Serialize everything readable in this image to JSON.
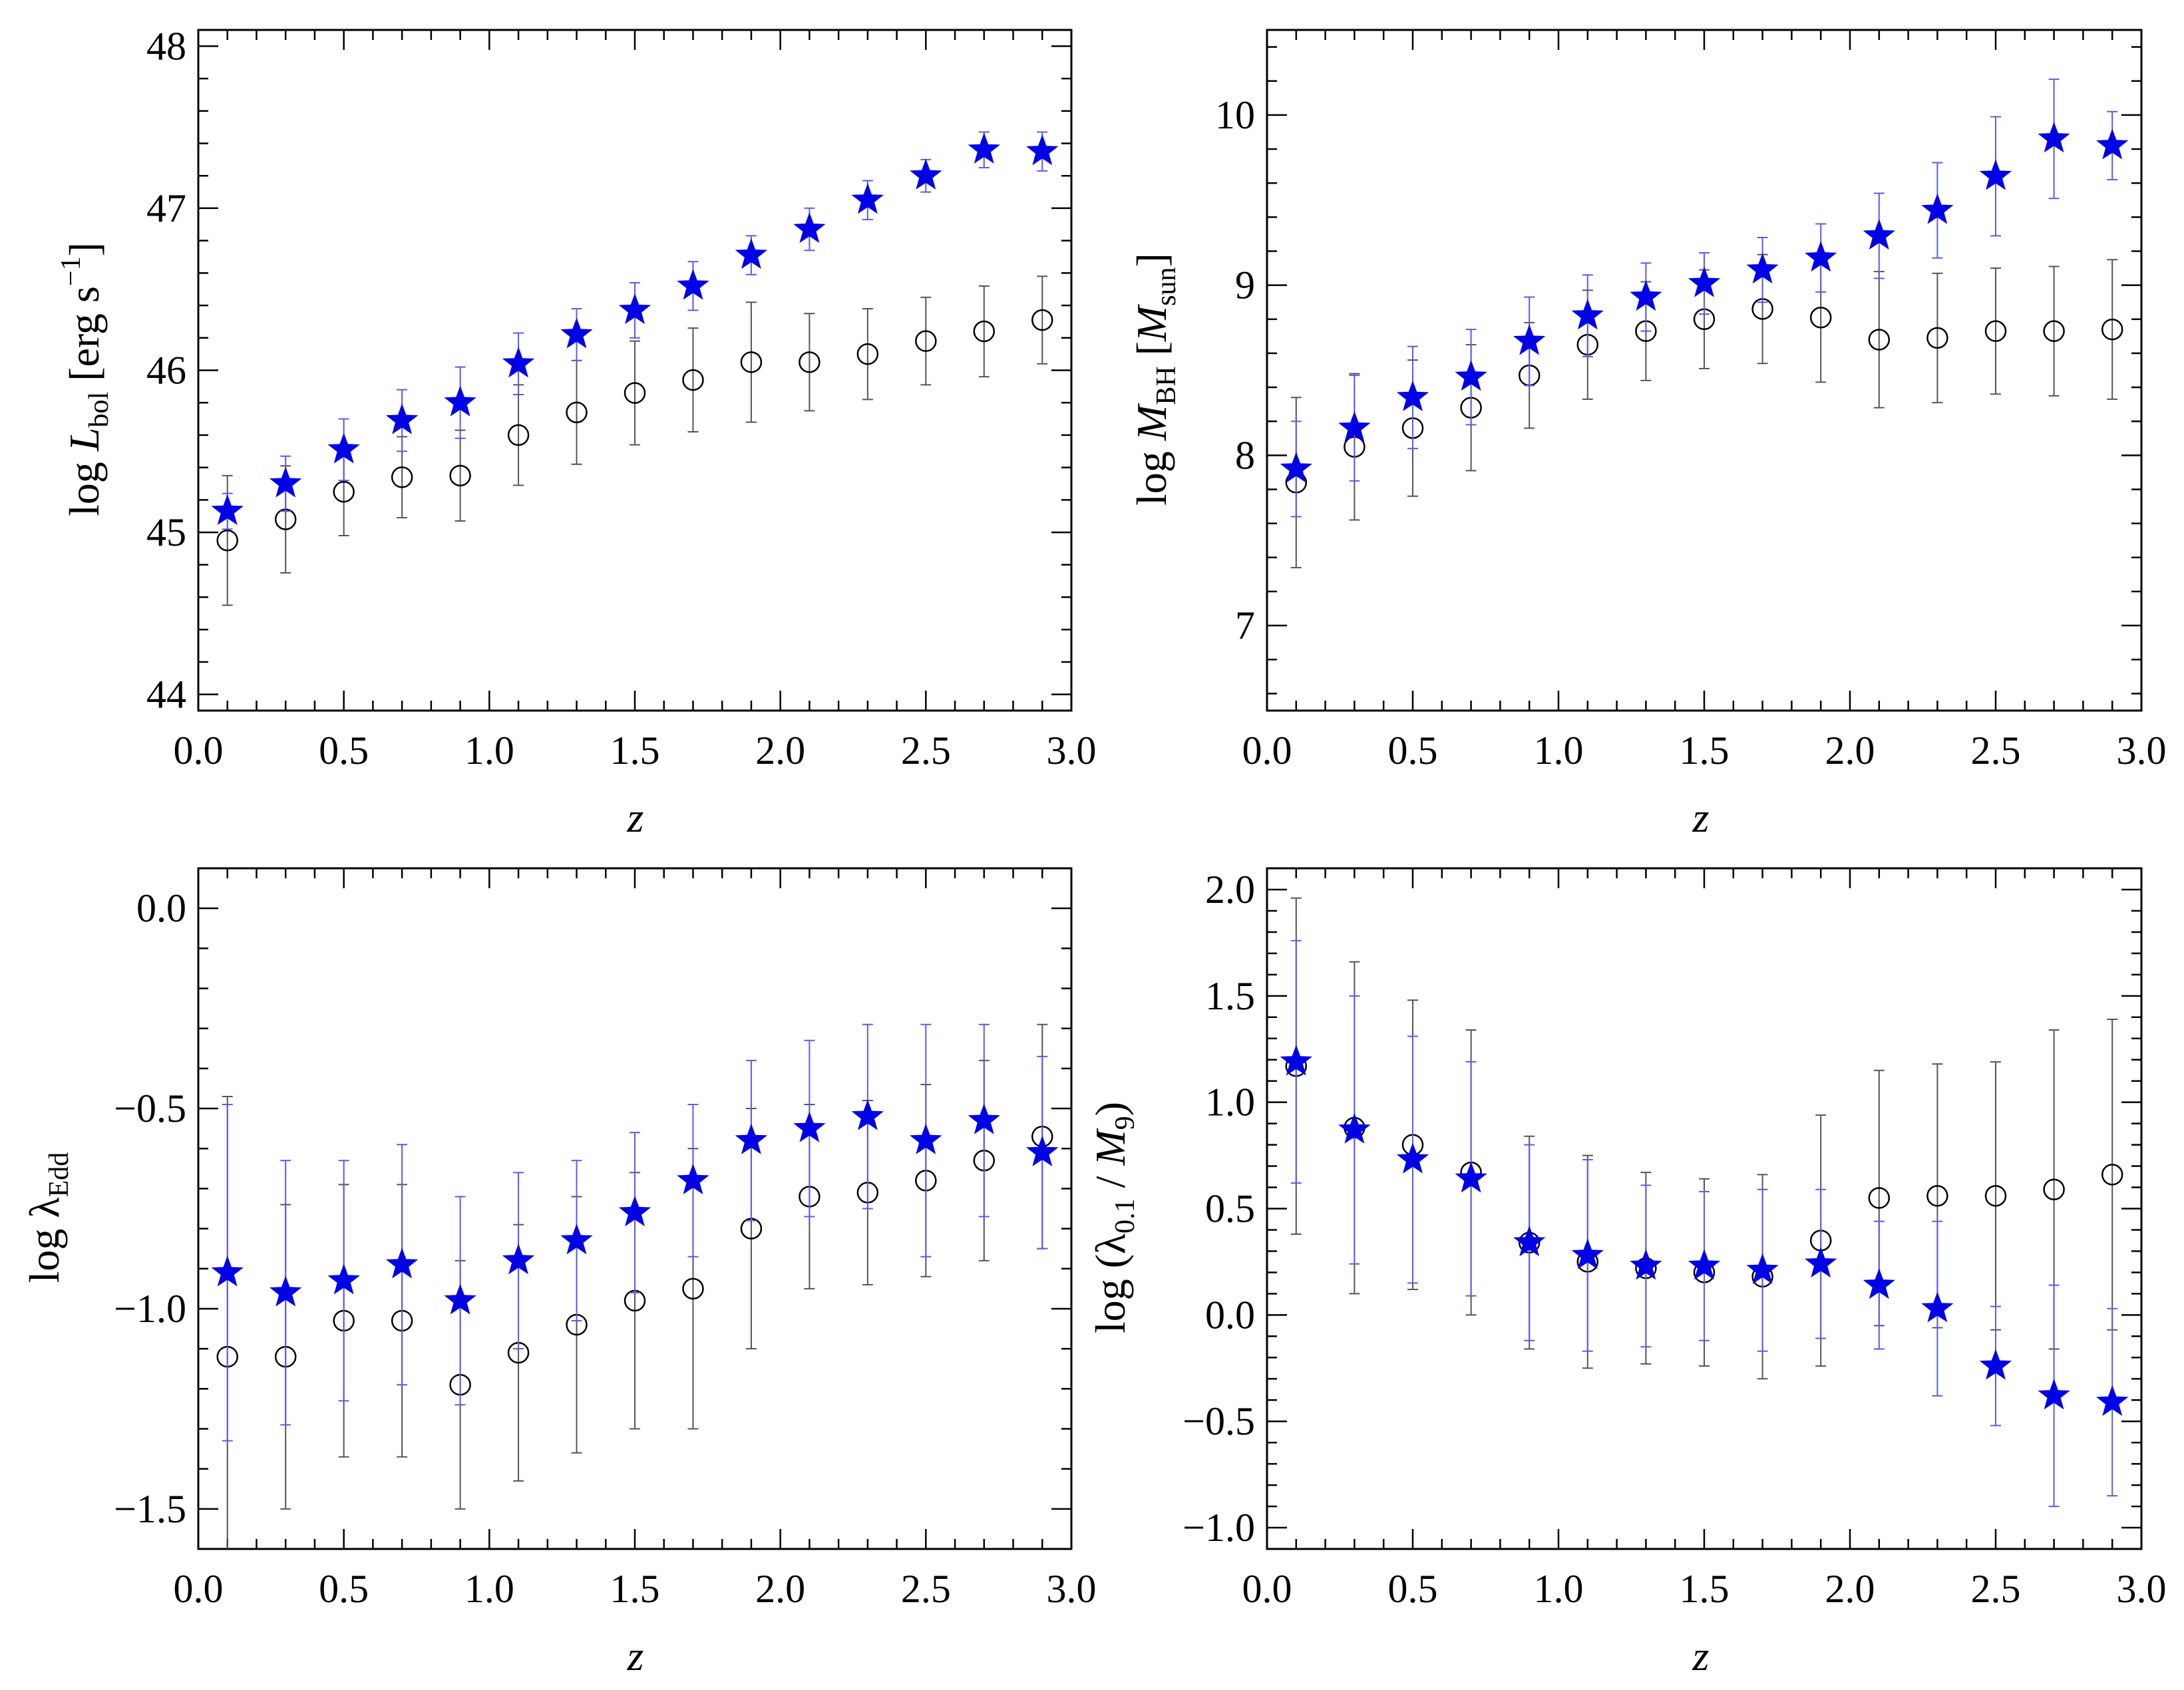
{
  "colors": {
    "star": "#0000e6",
    "star_err": "#5a5af0",
    "circle": "#000000",
    "circle_err": "#555555",
    "axis": "#000000"
  },
  "chart_data": [
    {
      "id": "lbol",
      "type": "scatter",
      "title": "",
      "xlabel": "z",
      "ylabel_parts": {
        "prefix": "log ",
        "var": "L",
        "sub": "bol",
        "suffix": " [erg s",
        "sup": "−1",
        "close": "]"
      },
      "xlim": [
        0.0,
        3.0
      ],
      "ylim": [
        43.9,
        48.1
      ],
      "xticks": [
        0.0,
        0.5,
        1.0,
        1.5,
        2.0,
        2.5,
        3.0
      ],
      "xtick_labels": [
        "0.0",
        "0.5",
        "1.0",
        "1.5",
        "2.0",
        "2.5",
        "3.0"
      ],
      "yticks": [
        44,
        45,
        46,
        47,
        48
      ],
      "ytick_labels": [
        "44",
        "45",
        "46",
        "47",
        "48"
      ],
      "series": [
        {
          "name": "stars",
          "marker": "star",
          "x": [
            0.1,
            0.3,
            0.5,
            0.7,
            0.9,
            1.1,
            1.3,
            1.5,
            1.7,
            1.9,
            2.1,
            2.3,
            2.5,
            2.7,
            2.9
          ],
          "y": [
            45.13,
            45.3,
            45.51,
            45.69,
            45.8,
            46.04,
            46.22,
            46.37,
            46.52,
            46.71,
            46.87,
            47.05,
            47.2,
            47.36,
            47.35
          ],
          "err": [
            0.11,
            0.17,
            0.19,
            0.19,
            0.22,
            0.19,
            0.16,
            0.17,
            0.15,
            0.12,
            0.13,
            0.12,
            0.1,
            0.11,
            0.12
          ]
        },
        {
          "name": "circles",
          "marker": "circle",
          "x": [
            0.1,
            0.3,
            0.5,
            0.7,
            0.9,
            1.1,
            1.3,
            1.5,
            1.7,
            1.9,
            2.1,
            2.3,
            2.5,
            2.7,
            2.9
          ],
          "y": [
            44.95,
            45.08,
            45.25,
            45.34,
            45.35,
            45.6,
            45.74,
            45.86,
            45.94,
            46.05,
            46.05,
            46.1,
            46.18,
            46.24,
            46.31
          ],
          "err": [
            0.4,
            0.33,
            0.27,
            0.25,
            0.28,
            0.31,
            0.32,
            0.32,
            0.32,
            0.37,
            0.3,
            0.28,
            0.27,
            0.28,
            0.27
          ]
        }
      ]
    },
    {
      "id": "mbh",
      "type": "scatter",
      "title": "",
      "xlabel": "z",
      "ylabel_parts": {
        "prefix": "log ",
        "var": "M",
        "sub": "BH",
        "suffix": " [",
        "var2": "M",
        "sub2": "sun",
        "close": "]"
      },
      "xlim": [
        0.0,
        3.0
      ],
      "ylim": [
        6.5,
        10.5
      ],
      "xticks": [
        0.0,
        0.5,
        1.0,
        1.5,
        2.0,
        2.5,
        3.0
      ],
      "xtick_labels": [
        "0.0",
        "0.5",
        "1.0",
        "1.5",
        "2.0",
        "2.5",
        "3.0"
      ],
      "yticks": [
        7,
        8,
        9,
        10
      ],
      "ytick_labels": [
        "7",
        "8",
        "9",
        "10"
      ],
      "series": [
        {
          "name": "stars",
          "marker": "star",
          "x": [
            0.1,
            0.3,
            0.5,
            0.7,
            0.9,
            1.1,
            1.3,
            1.5,
            1.7,
            1.9,
            2.1,
            2.3,
            2.5,
            2.7,
            2.9
          ],
          "y": [
            7.92,
            8.16,
            8.34,
            8.46,
            8.67,
            8.82,
            8.93,
            9.01,
            9.09,
            9.16,
            9.29,
            9.44,
            9.64,
            9.86,
            9.82
          ],
          "err": [
            0.28,
            0.31,
            0.3,
            0.28,
            0.26,
            0.24,
            0.2,
            0.18,
            0.19,
            0.2,
            0.25,
            0.28,
            0.35,
            0.35,
            0.2
          ]
        },
        {
          "name": "circles",
          "marker": "circle",
          "x": [
            0.1,
            0.3,
            0.5,
            0.7,
            0.9,
            1.1,
            1.3,
            1.5,
            1.7,
            1.9,
            2.1,
            2.3,
            2.5,
            2.7,
            2.9
          ],
          "y": [
            7.84,
            8.05,
            8.16,
            8.28,
            8.47,
            8.65,
            8.73,
            8.8,
            8.86,
            8.81,
            8.68,
            8.69,
            8.73,
            8.73,
            8.74
          ],
          "err": [
            0.5,
            0.43,
            0.4,
            0.37,
            0.31,
            0.32,
            0.29,
            0.29,
            0.32,
            0.38,
            0.4,
            0.38,
            0.37,
            0.38,
            0.41
          ]
        }
      ]
    },
    {
      "id": "ledd",
      "type": "scatter",
      "title": "",
      "xlabel": "z",
      "ylabel_parts": {
        "prefix": "log ",
        "greek": "λ",
        "sub": "Edd"
      },
      "xlim": [
        0.0,
        3.0
      ],
      "ylim": [
        -1.6,
        0.1
      ],
      "xticks": [
        0.0,
        0.5,
        1.0,
        1.5,
        2.0,
        2.5,
        3.0
      ],
      "xtick_labels": [
        "0.0",
        "0.5",
        "1.0",
        "1.5",
        "2.0",
        "2.5",
        "3.0"
      ],
      "yticks": [
        -1.5,
        -1.0,
        -0.5,
        0.0
      ],
      "ytick_labels": [
        "−1.5",
        "−1.0",
        "−0.5",
        "0.0"
      ],
      "series": [
        {
          "name": "stars",
          "marker": "star",
          "x": [
            0.1,
            0.3,
            0.5,
            0.7,
            0.9,
            1.1,
            1.3,
            1.5,
            1.7,
            1.9,
            2.1,
            2.3,
            2.5,
            2.7,
            2.9
          ],
          "y": [
            -0.91,
            -0.96,
            -0.93,
            -0.89,
            -0.98,
            -0.88,
            -0.83,
            -0.76,
            -0.68,
            -0.58,
            -0.55,
            -0.52,
            -0.58,
            -0.53,
            -0.61
          ],
          "err": [
            0.42,
            0.33,
            0.3,
            0.3,
            0.26,
            0.22,
            0.2,
            0.2,
            0.19,
            0.2,
            0.22,
            0.23,
            0.29,
            0.24,
            0.24
          ]
        },
        {
          "name": "circles",
          "marker": "circle",
          "x": [
            0.1,
            0.3,
            0.5,
            0.7,
            0.9,
            1.1,
            1.3,
            1.5,
            1.7,
            1.9,
            2.1,
            2.3,
            2.5,
            2.7,
            2.9
          ],
          "y": [
            -1.12,
            -1.12,
            -1.03,
            -1.03,
            -1.19,
            -1.11,
            -1.04,
            -0.98,
            -0.95,
            -0.8,
            -0.72,
            -0.71,
            -0.68,
            -0.63,
            -0.57
          ],
          "err": [
            0.65,
            0.38,
            0.34,
            0.34,
            0.31,
            0.32,
            0.32,
            0.32,
            0.35,
            0.3,
            0.23,
            0.23,
            0.24,
            0.25,
            0.28
          ]
        }
      ]
    },
    {
      "id": "lambda_m9",
      "type": "scatter",
      "title": "",
      "xlabel": "z",
      "ylabel_parts": {
        "prefix": "log (",
        "greek": "λ",
        "sub": "0.1",
        "mid": " / ",
        "var": "M",
        "sub2": "9",
        "close": ")"
      },
      "xlim": [
        0.0,
        3.0
      ],
      "ylim": [
        -1.1,
        2.1
      ],
      "xticks": [
        0.0,
        0.5,
        1.0,
        1.5,
        2.0,
        2.5,
        3.0
      ],
      "xtick_labels": [
        "0.0",
        "0.5",
        "1.0",
        "1.5",
        "2.0",
        "2.5",
        "3.0"
      ],
      "yticks": [
        -1.0,
        -0.5,
        0.0,
        0.5,
        1.0,
        1.5,
        2.0
      ],
      "ytick_labels": [
        "−1.0",
        "−0.5",
        "0.0",
        "0.5",
        "1.0",
        "1.5",
        "2.0"
      ],
      "series": [
        {
          "name": "stars",
          "marker": "star",
          "x": [
            0.1,
            0.3,
            0.5,
            0.7,
            0.9,
            1.1,
            1.3,
            1.5,
            1.7,
            1.9,
            2.1,
            2.3,
            2.5,
            2.7,
            2.9
          ],
          "y": [
            1.19,
            0.87,
            0.73,
            0.64,
            0.34,
            0.28,
            0.23,
            0.23,
            0.21,
            0.24,
            0.14,
            0.03,
            -0.24,
            -0.38,
            -0.41
          ],
          "err": [
            0.57,
            0.63,
            0.58,
            0.55,
            0.46,
            0.45,
            0.38,
            0.35,
            0.38,
            0.35,
            0.3,
            0.41,
            0.28,
            0.52,
            0.44
          ]
        },
        {
          "name": "circles",
          "marker": "circle",
          "x": [
            0.1,
            0.3,
            0.5,
            0.7,
            0.9,
            1.1,
            1.3,
            1.5,
            1.7,
            1.9,
            2.1,
            2.3,
            2.5,
            2.7,
            2.9
          ],
          "y": [
            1.17,
            0.88,
            0.8,
            0.67,
            0.34,
            0.25,
            0.22,
            0.2,
            0.18,
            0.35,
            0.55,
            0.56,
            0.56,
            0.59,
            0.66
          ],
          "err": [
            0.79,
            0.78,
            0.68,
            0.67,
            0.5,
            0.5,
            0.45,
            0.44,
            0.48,
            0.59,
            0.6,
            0.62,
            0.63,
            0.75,
            0.73
          ]
        }
      ]
    }
  ]
}
